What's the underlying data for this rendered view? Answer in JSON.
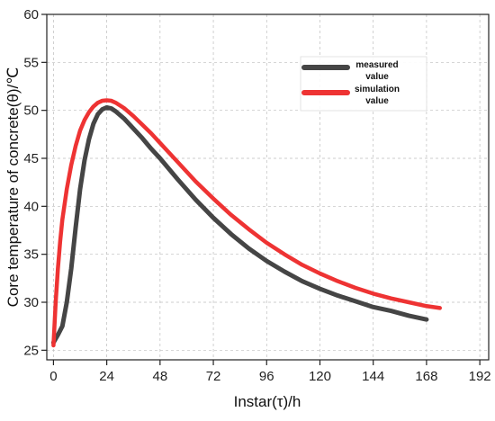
{
  "chart_data": {
    "type": "line",
    "xlabel": "Instar(τ)/h",
    "ylabel": "Core temperature of concrete(θ)/℃",
    "xlim": [
      -3,
      196
    ],
    "ylim": [
      24,
      60
    ],
    "x_ticks": [
      0,
      24,
      48,
      72,
      96,
      120,
      144,
      168,
      192
    ],
    "y_ticks": [
      25,
      30,
      35,
      40,
      45,
      50,
      55,
      60
    ],
    "grid": true,
    "legend_position": "top-right",
    "series": [
      {
        "name": "measured value",
        "color": "#454545",
        "points": [
          [
            0,
            25.8
          ],
          [
            2,
            26.6
          ],
          [
            4,
            27.5
          ],
          [
            6,
            30.0
          ],
          [
            8,
            33.5
          ],
          [
            10,
            37.8
          ],
          [
            12,
            41.8
          ],
          [
            14,
            44.8
          ],
          [
            16,
            47.0
          ],
          [
            18,
            48.6
          ],
          [
            20,
            49.6
          ],
          [
            22,
            50.1
          ],
          [
            24,
            50.3
          ],
          [
            26,
            50.2
          ],
          [
            28,
            49.9
          ],
          [
            32,
            49.1
          ],
          [
            36,
            48.1
          ],
          [
            40,
            47.1
          ],
          [
            44,
            46.0
          ],
          [
            48,
            45.0
          ],
          [
            56,
            42.8
          ],
          [
            64,
            40.7
          ],
          [
            72,
            38.8
          ],
          [
            80,
            37.1
          ],
          [
            88,
            35.6
          ],
          [
            96,
            34.3
          ],
          [
            104,
            33.2
          ],
          [
            112,
            32.2
          ],
          [
            120,
            31.4
          ],
          [
            128,
            30.7
          ],
          [
            136,
            30.1
          ],
          [
            144,
            29.5
          ],
          [
            152,
            29.1
          ],
          [
            160,
            28.6
          ],
          [
            168,
            28.2
          ]
        ]
      },
      {
        "name": "simulation value",
        "color": "#ee3333",
        "points": [
          [
            0,
            25.5
          ],
          [
            1,
            30.0
          ],
          [
            2,
            33.5
          ],
          [
            3,
            36.3
          ],
          [
            4,
            38.6
          ],
          [
            6,
            41.8
          ],
          [
            8,
            44.3
          ],
          [
            10,
            46.3
          ],
          [
            12,
            47.9
          ],
          [
            14,
            49.0
          ],
          [
            16,
            49.8
          ],
          [
            18,
            50.4
          ],
          [
            20,
            50.8
          ],
          [
            22,
            51.0
          ],
          [
            24,
            51.05
          ],
          [
            26,
            51.0
          ],
          [
            28,
            50.8
          ],
          [
            32,
            50.2
          ],
          [
            36,
            49.4
          ],
          [
            40,
            48.5
          ],
          [
            44,
            47.6
          ],
          [
            48,
            46.6
          ],
          [
            56,
            44.6
          ],
          [
            64,
            42.6
          ],
          [
            72,
            40.8
          ],
          [
            80,
            39.1
          ],
          [
            88,
            37.6
          ],
          [
            96,
            36.2
          ],
          [
            104,
            35.0
          ],
          [
            112,
            33.9
          ],
          [
            120,
            33.0
          ],
          [
            128,
            32.2
          ],
          [
            136,
            31.5
          ],
          [
            144,
            30.9
          ],
          [
            152,
            30.4
          ],
          [
            160,
            30.0
          ],
          [
            168,
            29.6
          ],
          [
            174,
            29.4
          ]
        ]
      }
    ]
  }
}
